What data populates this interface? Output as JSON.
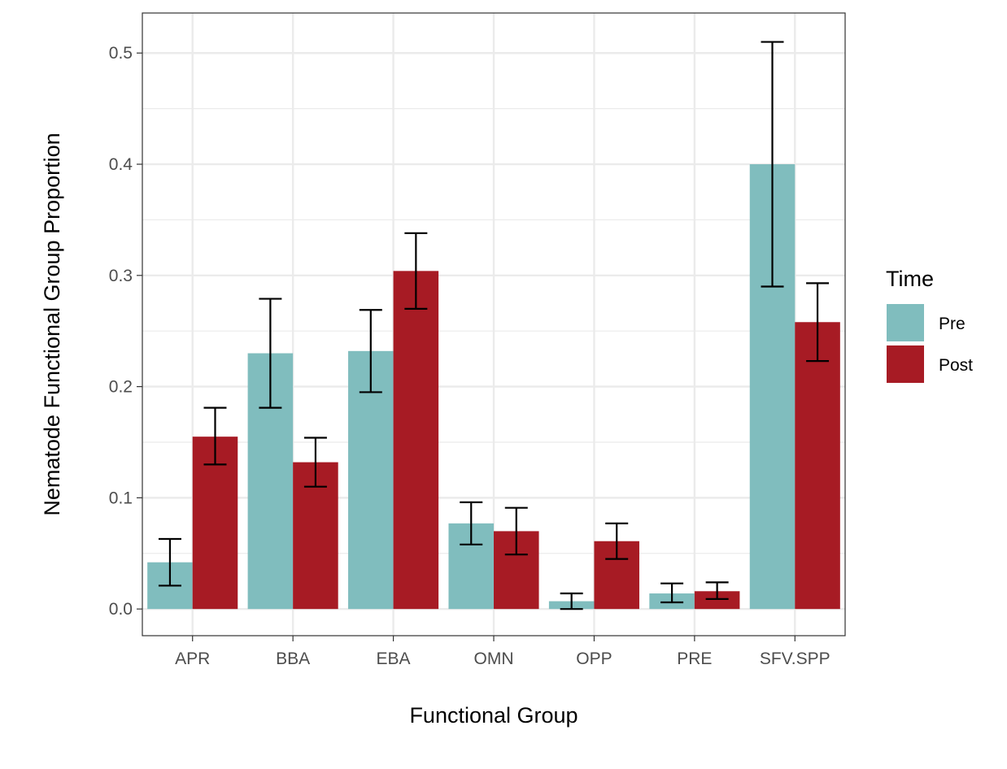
{
  "chart_data": {
    "type": "bar",
    "title": "",
    "xlabel": "Functional Group",
    "ylabel": "Nematode Functional Group Proportion",
    "categories": [
      "APR",
      "BBA",
      "EBA",
      "OMN",
      "OPP",
      "PRE",
      "SFV.SPP"
    ],
    "ylim": [
      -0.024,
      0.536
    ],
    "yticks": [
      0.0,
      0.1,
      0.2,
      0.3,
      0.4,
      0.5
    ],
    "ytick_labels": [
      "0.0",
      "0.1",
      "0.2",
      "0.3",
      "0.4",
      "0.5"
    ],
    "grid": true,
    "legend": {
      "title": "Time",
      "position": "right"
    },
    "series": [
      {
        "name": "Pre",
        "color": "#80BDBE",
        "values": [
          0.042,
          0.23,
          0.232,
          0.077,
          0.007,
          0.014,
          0.4
        ],
        "err_low": [
          0.021,
          0.181,
          0.195,
          0.058,
          0.0,
          0.006,
          0.29
        ],
        "err_high": [
          0.063,
          0.279,
          0.269,
          0.096,
          0.014,
          0.023,
          0.51
        ]
      },
      {
        "name": "Post",
        "color": "#A71B24",
        "values": [
          0.155,
          0.132,
          0.304,
          0.07,
          0.061,
          0.016,
          0.258
        ],
        "err_low": [
          0.13,
          0.11,
          0.27,
          0.049,
          0.045,
          0.009,
          0.223
        ],
        "err_high": [
          0.181,
          0.154,
          0.338,
          0.091,
          0.077,
          0.024,
          0.293
        ]
      }
    ]
  }
}
